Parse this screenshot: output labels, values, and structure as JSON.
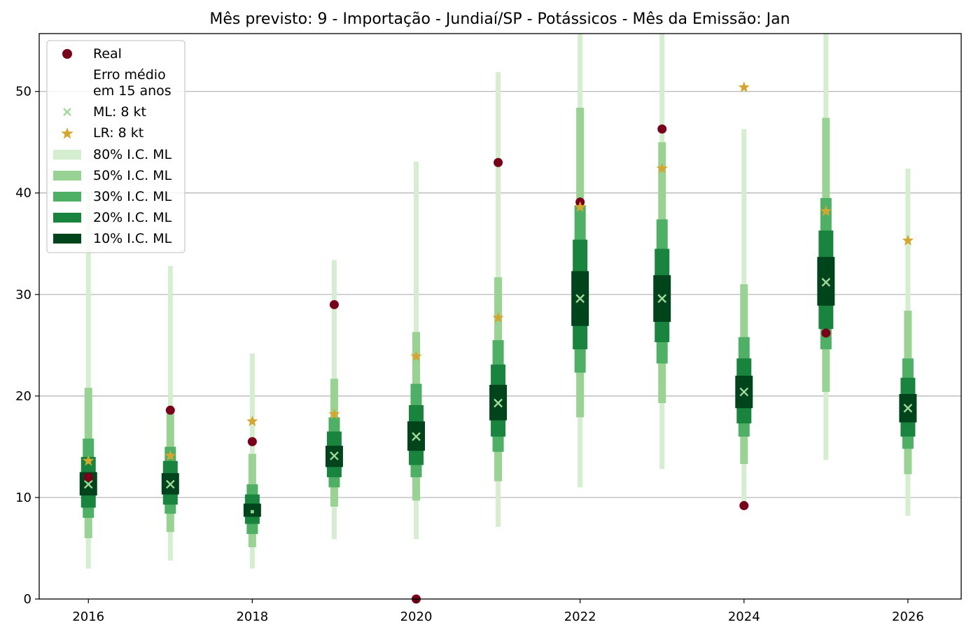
{
  "chart_data": {
    "type": "interval",
    "title": "Mês previsto: 9 - Importação - Jundiaí/SP - Potássicos - Mês da Emissão: Jan",
    "xlabel": "",
    "ylabel": "",
    "xlim": [
      2015.4,
      2026.65
    ],
    "ylim": [
      0,
      55.7
    ],
    "x_ticks": [
      2016,
      2018,
      2020,
      2022,
      2024,
      2026
    ],
    "y_ticks": [
      0,
      10,
      20,
      30,
      40,
      50
    ],
    "grid": "horizontal",
    "legend_position": "top-left",
    "legend": {
      "real": "Real",
      "erro_line1": "Erro médio",
      "erro_line2": "em 15 anos",
      "ml": "ML: 8 kt",
      "lr": "LR: 8 kt",
      "ci80": "80% I.C. ML",
      "ci50": "50% I.C. ML",
      "ci30": "30% I.C. ML",
      "ci20": "20% I.C. ML",
      "ci10": "10% I.C. ML"
    },
    "colors": {
      "real": "#7a0019",
      "ml": "#a1d99b",
      "lr": "#d4a72c",
      "ci80": "#d4eecf",
      "ci50": "#98d394",
      "ci30": "#4db064",
      "ci20": "#18843d",
      "ci10": "#00441b"
    },
    "x": [
      2016,
      2017,
      2018,
      2019,
      2020,
      2021,
      2022,
      2023,
      2024,
      2025,
      2026
    ],
    "ml": [
      11.3,
      11.3,
      8.6,
      14.1,
      16.0,
      19.3,
      29.6,
      29.6,
      20.4,
      31.2,
      18.8
    ],
    "lr": [
      13.6,
      14.1,
      17.5,
      18.2,
      23.9,
      27.7,
      38.6,
      42.4,
      50.4,
      38.2,
      35.3
    ],
    "real": [
      12.0,
      18.6,
      15.5,
      29.0,
      0.0,
      43.0,
      39.1,
      46.3,
      9.2,
      26.2,
      null
    ],
    "ci80": [
      [
        3.0,
        40.0
      ],
      [
        3.8,
        32.8
      ],
      [
        3.0,
        24.2
      ],
      [
        5.9,
        33.4
      ],
      [
        5.9,
        43.1
      ],
      [
        7.1,
        51.9
      ],
      [
        11.0,
        55.7
      ],
      [
        12.8,
        55.7
      ],
      [
        9.2,
        46.3
      ],
      [
        13.7,
        55.7
      ],
      [
        8.2,
        42.4
      ]
    ],
    "ci50": [
      [
        6.0,
        20.8
      ],
      [
        6.6,
        18.6
      ],
      [
        5.1,
        14.3
      ],
      [
        9.1,
        21.7
      ],
      [
        9.7,
        26.3
      ],
      [
        11.6,
        31.7
      ],
      [
        17.9,
        48.4
      ],
      [
        19.3,
        45.0
      ],
      [
        13.3,
        31.0
      ],
      [
        20.4,
        47.4
      ],
      [
        12.3,
        28.4
      ]
    ],
    "ci30": [
      [
        8.0,
        15.8
      ],
      [
        8.4,
        15.0
      ],
      [
        6.4,
        11.3
      ],
      [
        11.0,
        17.9
      ],
      [
        12.0,
        21.2
      ],
      [
        14.5,
        25.5
      ],
      [
        22.3,
        38.8
      ],
      [
        23.2,
        37.4
      ],
      [
        16.0,
        25.8
      ],
      [
        24.6,
        39.5
      ],
      [
        14.8,
        23.7
      ]
    ],
    "ci20": [
      [
        9.0,
        14.0
      ],
      [
        9.3,
        13.6
      ],
      [
        7.4,
        10.3
      ],
      [
        12.0,
        16.5
      ],
      [
        13.2,
        19.1
      ],
      [
        16.0,
        23.1
      ],
      [
        24.6,
        35.4
      ],
      [
        25.3,
        34.5
      ],
      [
        17.3,
        23.7
      ],
      [
        26.6,
        36.3
      ],
      [
        16.0,
        21.8
      ]
    ],
    "ci10": [
      [
        10.2,
        12.5
      ],
      [
        10.3,
        12.4
      ],
      [
        8.1,
        9.4
      ],
      [
        13.0,
        15.1
      ],
      [
        14.6,
        17.5
      ],
      [
        17.6,
        21.1
      ],
      [
        26.9,
        32.3
      ],
      [
        27.3,
        31.9
      ],
      [
        18.8,
        22.0
      ],
      [
        28.9,
        33.7
      ],
      [
        17.4,
        20.2
      ]
    ]
  }
}
